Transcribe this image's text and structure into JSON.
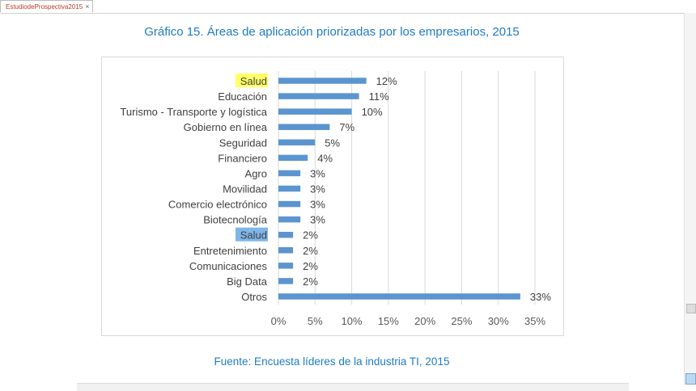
{
  "tab": {
    "title": "EstudiodeProspectiva2015",
    "close": "×",
    "icon": "pdf-icon"
  },
  "title": "Gráfico 15. Áreas de aplicación priorizadas por los empresarios, 2015",
  "source": "Fuente: Encuesta líderes de la industria TI, 2015",
  "chart_data": {
    "type": "bar",
    "orientation": "horizontal",
    "categories": [
      "Salud",
      "Educación",
      "Turismo - Transporte y logística",
      "Gobierno en línea",
      "Seguridad",
      "Financiero",
      "Agro",
      "Movilidad",
      "Comercio electrónico",
      "Biotecnología",
      "Salud",
      "Entretenimiento",
      "Comunicaciones",
      "Big Data",
      "Otros"
    ],
    "values": [
      12,
      11,
      10,
      7,
      5,
      4,
      3,
      3,
      3,
      3,
      2,
      2,
      2,
      2,
      33
    ],
    "data_labels": [
      "12%",
      "11%",
      "10%",
      "7%",
      "5%",
      "4%",
      "3%",
      "3%",
      "3%",
      "3%",
      "2%",
      "2%",
      "2%",
      "2%",
      "33%"
    ],
    "highlights": {
      "0": "#ffff66",
      "10": "#7eb6e8"
    },
    "xlim": [
      0,
      35
    ],
    "xticks": [
      "0%",
      "5%",
      "10%",
      "15%",
      "20%",
      "25%",
      "30%",
      "35%"
    ],
    "grid": true,
    "bar_color": "#5b95cf"
  }
}
